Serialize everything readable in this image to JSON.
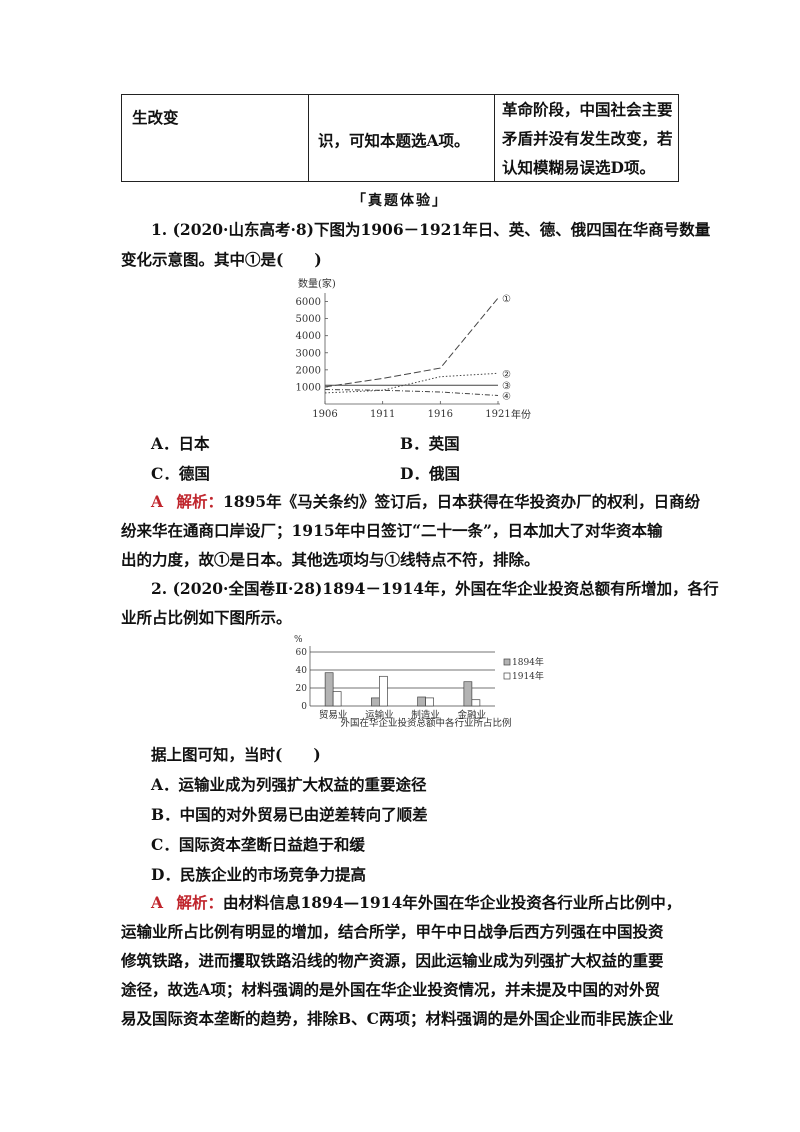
{
  "table": {
    "col1": "生改变",
    "col2": "识，可知本题选A项。",
    "col3": [
      "革命阶段，中国社会主要",
      "矛盾并没有发生改变，若",
      "认知模糊易误选D项。"
    ]
  },
  "section_title": "「真题体验」",
  "q1": {
    "lines": [
      "1. (2020·山东高考·8)下图为1906－1921年日、英、德、俄四国在华商号数量",
      "变化示意图。其中①是(　　)"
    ],
    "options": [
      "A．日本",
      "B．英国",
      "C．德国",
      "D．俄国"
    ],
    "answer": "A",
    "analysis_label": "解析：",
    "analysis": [
      "1895年《马关条约》签订后，日本获得在华投资办厂的权利，日商纷",
      "纷来华在通商口岸设厂；1915年中日签订“二十一条”，日本加大了对华资本输",
      "出的力度，故①是日本。其他选项均与①线特点不符，排除。"
    ]
  },
  "chart1": {
    "chart_data": {
      "type": "line",
      "ylabel": "数量(家)",
      "xlabel": "年份",
      "x": [
        1906,
        1911,
        1916,
        1921
      ],
      "x_tick_labels": [
        "1906",
        "1911",
        "1916",
        "1921"
      ],
      "y_ticks": [
        1000,
        2000,
        3000,
        4000,
        5000,
        6000
      ],
      "ylim": [
        0,
        6500
      ],
      "series": [
        {
          "name": "①",
          "style": "dashed",
          "values": [
            1000,
            1500,
            2100,
            6200
          ]
        },
        {
          "name": "②",
          "style": "dotted",
          "values": [
            650,
            800,
            1600,
            1800
          ]
        },
        {
          "name": "③",
          "style": "solid",
          "values": [
            1100,
            1100,
            1100,
            1100
          ]
        },
        {
          "name": "④",
          "style": "dashdot",
          "values": [
            850,
            800,
            700,
            500
          ]
        }
      ]
    }
  },
  "q2": {
    "lines": [
      "2. (2020·全国卷Ⅱ·28)1894－1914年，外国在华企业投资总额有所增加，各行",
      "业所占比例如下图所示。"
    ],
    "stem": "据上图可知，当时(　　)",
    "options": [
      "A．运输业成为列强扩大权益的重要途径",
      "B．中国的对外贸易已由逆差转向了顺差",
      "C．国际资本垄断日益趋于和缓",
      "D．民族企业的市场竞争力提高"
    ],
    "answer": "A",
    "analysis_label": "解析：",
    "analysis": [
      "由材料信息1894—1914年外国在华企业投资各行业所占比例中，",
      "运输业所占比例有明显的增加，结合所学，甲午中日战争后西方列强在中国投资",
      "修筑铁路，进而攫取铁路沿线的物产资源，因此运输业成为列强扩大权益的重要",
      "途径，故选A项；材料强调的是外国在华企业投资情况，并未提及中国的对外贸",
      "易及国际资本垄断的趋势，排除B、C两项；材料强调的是外国企业而非民族企业"
    ]
  },
  "chart2": {
    "chart_data": {
      "type": "bar",
      "ylabel": "%",
      "title": "外国在华企业投资总额中各行业所占比例",
      "categories": [
        "贸易业",
        "运输业",
        "制造业",
        "金融业"
      ],
      "ylim": [
        0,
        60
      ],
      "y_ticks": [
        0,
        20,
        40,
        60
      ],
      "series": [
        {
          "name": "1894年",
          "color": "#b3b3b3",
          "values": [
            37,
            9,
            10,
            27
          ]
        },
        {
          "name": "1914年",
          "color": "#ffffff",
          "values": [
            16,
            33,
            9,
            7
          ]
        }
      ]
    }
  }
}
